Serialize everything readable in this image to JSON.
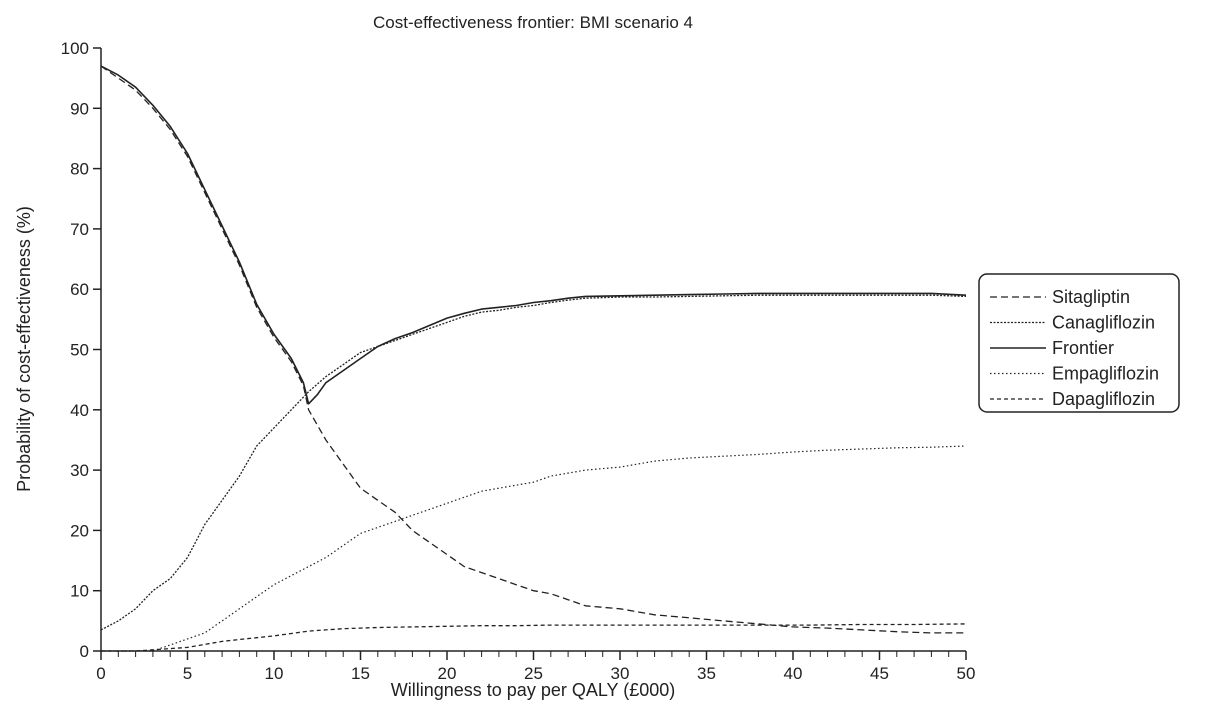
{
  "chart_data": {
    "type": "line",
    "title": "Cost-effectiveness frontier: BMI scenario 4",
    "xlabel": "Willingness to pay per QALY (£000)",
    "ylabel": "Probability of cost-effectiveness (%)",
    "xlim": [
      0,
      50
    ],
    "ylim": [
      0,
      100
    ],
    "x_ticks": [
      0,
      5,
      10,
      15,
      20,
      25,
      30,
      35,
      40,
      45,
      50
    ],
    "y_ticks": [
      0,
      10,
      20,
      30,
      40,
      50,
      60,
      70,
      80,
      90,
      100
    ],
    "grid": false,
    "legend_position": "right",
    "series": [
      {
        "name": "Sitagliptin",
        "style": "dashed",
        "x": [
          0,
          1,
          2,
          3,
          4,
          5,
          6,
          7,
          8,
          9,
          10,
          11,
          11.7,
          12,
          13,
          14,
          15,
          16,
          17,
          18,
          19,
          20,
          21,
          22,
          23,
          24,
          25,
          26,
          27,
          28,
          30,
          32,
          34,
          36,
          38,
          40,
          42,
          44,
          46,
          48,
          50
        ],
        "values": [
          97,
          95,
          93,
          90,
          86.5,
          82,
          76,
          70,
          64,
          57,
          52,
          48,
          44,
          40,
          35,
          31,
          27,
          25,
          23,
          20,
          18,
          16,
          14,
          13,
          12,
          11,
          10,
          9.5,
          8.5,
          7.5,
          7,
          6,
          5.5,
          5,
          4.5,
          4,
          3.8,
          3.5,
          3.2,
          3,
          3
        ]
      },
      {
        "name": "Canagliflozin",
        "style": "dense-dotted",
        "x": [
          0,
          1,
          2,
          3,
          4,
          5,
          6,
          7,
          8,
          9,
          10,
          11,
          12,
          13,
          14,
          15,
          16,
          17,
          18,
          19,
          20,
          21,
          22,
          23,
          24,
          25,
          26,
          27,
          28,
          30,
          32,
          34,
          36,
          38,
          40,
          42,
          44,
          46,
          48,
          50
        ],
        "values": [
          3.5,
          5,
          7,
          10,
          12,
          15.5,
          21,
          25,
          29,
          34,
          37,
          40,
          43,
          45.5,
          47.5,
          49.5,
          50.5,
          51.5,
          52.5,
          53.5,
          54.5,
          55.5,
          56.2,
          56.5,
          57,
          57.3,
          57.8,
          58.2,
          58.5,
          58.7,
          58.7,
          58.8,
          58.9,
          59,
          59,
          59,
          59,
          59,
          59,
          58.8
        ]
      },
      {
        "name": "Frontier",
        "style": "solid",
        "x": [
          0,
          1,
          2,
          3,
          4,
          5,
          6,
          7,
          8,
          9,
          10,
          11,
          11.7,
          12,
          12.5,
          13,
          14,
          15,
          16,
          17,
          18,
          19,
          20,
          21,
          22,
          23,
          24,
          25,
          26,
          27,
          28,
          30,
          32,
          34,
          36,
          38,
          40,
          42,
          44,
          46,
          48,
          50
        ],
        "values": [
          97,
          95.5,
          93.5,
          90.5,
          87,
          82.5,
          76.5,
          70.5,
          64.5,
          57.5,
          52.5,
          48.5,
          44.5,
          41,
          42.5,
          44.5,
          46.5,
          48.5,
          50.5,
          51.8,
          52.8,
          54,
          55.2,
          56,
          56.7,
          57,
          57.3,
          57.8,
          58.1,
          58.5,
          58.8,
          58.9,
          59,
          59.1,
          59.2,
          59.3,
          59.3,
          59.3,
          59.3,
          59.3,
          59.3,
          59
        ]
      },
      {
        "name": "Empagliflozin",
        "style": "sparse-dotted",
        "x": [
          0,
          1,
          2,
          3,
          4,
          5,
          6,
          7,
          8,
          9,
          10,
          11,
          12,
          13,
          14,
          15,
          16,
          17,
          18,
          19,
          20,
          21,
          22,
          23,
          24,
          25,
          26,
          27,
          28,
          30,
          32,
          34,
          36,
          38,
          40,
          42,
          44,
          46,
          48,
          50
        ],
        "values": [
          0,
          0,
          0,
          0,
          1,
          2,
          3,
          5,
          7,
          9,
          11,
          12.5,
          14,
          15.5,
          17.5,
          19.5,
          20.5,
          21.5,
          22.5,
          23.5,
          24.5,
          25.5,
          26.5,
          27,
          27.5,
          28,
          29,
          29.5,
          30,
          30.5,
          31.5,
          32,
          32.3,
          32.6,
          33,
          33.3,
          33.5,
          33.7,
          33.8,
          34
        ]
      },
      {
        "name": "Dapagliflozin",
        "style": "short-dashed",
        "x": [
          0,
          2,
          3,
          4,
          5,
          6,
          7,
          8,
          9,
          10,
          11,
          12,
          13,
          14,
          15,
          16,
          18,
          20,
          22,
          24,
          26,
          28,
          30,
          32,
          35,
          38,
          41,
          44,
          47,
          50
        ],
        "values": [
          0,
          0,
          0.2,
          0.4,
          0.6,
          1.1,
          1.6,
          1.9,
          2.2,
          2.5,
          2.9,
          3.3,
          3.5,
          3.7,
          3.8,
          3.9,
          4.0,
          4.1,
          4.2,
          4.2,
          4.3,
          4.3,
          4.3,
          4.3,
          4.3,
          4.3,
          4.3,
          4.4,
          4.4,
          4.5
        ]
      }
    ]
  }
}
